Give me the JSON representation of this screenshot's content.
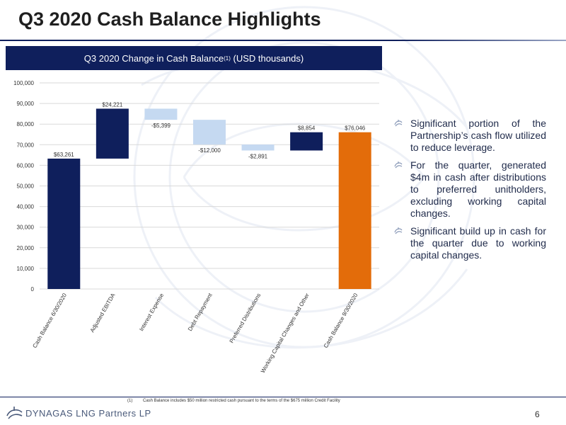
{
  "page": {
    "title": "Q3 2020 Cash Balance Highlights",
    "page_number": "6"
  },
  "chart_header": {
    "text": "Q3 2020 Change in Cash Balance",
    "superscript": "(1)",
    "units": "(USD thousands)"
  },
  "bullets": [
    "Significant portion of the Partnership’s cash flow utilized to reduce leverage.",
    "For the quarter, generated $4m in cash after distributions to preferred unitholders, excluding working capital changes.",
    "Significant build up in cash for the quarter due to working capital changes."
  ],
  "footnote": {
    "marker": "(1)",
    "text": "Cash Balance includes $50 million restricted cash pursuant to the terms of the $675 million Credit Facility"
  },
  "logo": {
    "text": "DYNAGAS LNG Partners LP"
  },
  "colors": {
    "navy": "#0f1f5c",
    "light_blue": "#c5d9f1",
    "orange": "#e36c0a"
  },
  "chart_data": {
    "type": "waterfall",
    "categories": [
      "Cash Balance 6/30/2020",
      "Adjusted EBITDA",
      "Interest Expense",
      "Debt Repayment",
      "Preferred Distributions",
      "Working Capital Changes and Other",
      "Cash Balance 9/30/2020"
    ],
    "values": [
      63261,
      24221,
      -5399,
      -12000,
      -2891,
      8854,
      76046
    ],
    "labels": [
      "$63,261",
      "$24,221",
      "-$5,399",
      "-$12,000",
      "-$2,891",
      "$8,854",
      "$76,046"
    ],
    "kinds": [
      "total",
      "delta",
      "delta",
      "delta",
      "delta",
      "delta",
      "total"
    ],
    "ylim": [
      0,
      100000
    ],
    "yticks": [
      0,
      10000,
      20000,
      30000,
      40000,
      50000,
      60000,
      70000,
      80000,
      90000,
      100000
    ],
    "ytick_labels": [
      "0",
      "10,000",
      "20,000",
      "30,000",
      "40,000",
      "50,000",
      "60,000",
      "70,000",
      "80,000",
      "90,000",
      "100,000"
    ],
    "grid": true
  }
}
